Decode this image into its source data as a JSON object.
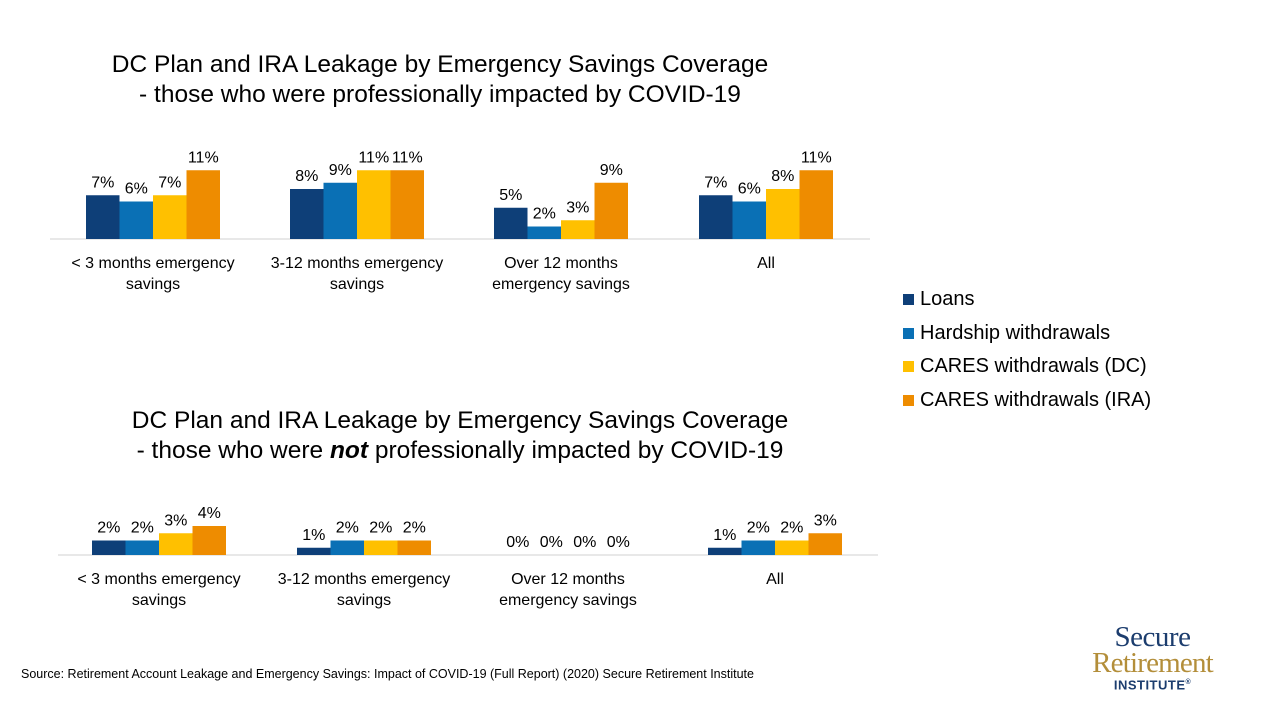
{
  "colors": {
    "loans": "#0e3f78",
    "hardship": "#0a70b5",
    "cares_dc": "#ffc000",
    "cares_ira": "#ee8c00",
    "axis": "#d0d0d0"
  },
  "legend": [
    {
      "name": "Loans",
      "color": "#0e3f78"
    },
    {
      "name": "Hardship withdrawals",
      "color": "#0a70b5"
    },
    {
      "name": "CARES withdrawals (DC)",
      "color": "#ffc000"
    },
    {
      "name": "CARES withdrawals (IRA)",
      "color": "#ee8c00"
    }
  ],
  "titles": {
    "top_line1": "DC Plan and IRA Leakage by Emergency Savings Coverage",
    "top_line2": "- those who were professionally impacted by COVID-19",
    "bottom_line1": "DC Plan and IRA Leakage by Emergency Savings Coverage",
    "bottom_line2_pre": "- those who were ",
    "bottom_line2_em": "not",
    "bottom_line2_post": " professionally impacted by COVID-19"
  },
  "chart_data": [
    {
      "type": "bar",
      "title": "DC Plan and IRA Leakage by Emergency Savings Coverage - those who were professionally impacted by COVID-19",
      "categories": [
        "< 3 months emergency savings",
        "3-12 months emergency savings",
        "Over 12 months emergency savings",
        "All"
      ],
      "category_lines": [
        [
          "< 3 months emergency",
          "savings"
        ],
        [
          "3-12 months emergency",
          "savings"
        ],
        [
          "Over 12 months",
          "emergency savings"
        ],
        [
          "All"
        ]
      ],
      "series": [
        {
          "name": "Loans",
          "values": [
            7,
            8,
            5,
            7
          ]
        },
        {
          "name": "Hardship withdrawals",
          "values": [
            6,
            9,
            2,
            6
          ]
        },
        {
          "name": "CARES withdrawals (DC)",
          "values": [
            7,
            11,
            3,
            8
          ]
        },
        {
          "name": "CARES withdrawals (IRA)",
          "values": [
            11,
            11,
            9,
            11
          ]
        }
      ],
      "value_suffix": "%",
      "legend_position": "right",
      "grid": false
    },
    {
      "type": "bar",
      "title": "DC Plan and IRA Leakage by Emergency Savings Coverage - those who were not professionally impacted by COVID-19",
      "categories": [
        "< 3 months emergency savings",
        "3-12 months emergency savings",
        "Over 12 months emergency savings",
        "All"
      ],
      "category_lines": [
        [
          "< 3 months emergency",
          "savings"
        ],
        [
          "3-12 months emergency",
          "savings"
        ],
        [
          "Over 12 months",
          "emergency savings"
        ],
        [
          "All"
        ]
      ],
      "series": [
        {
          "name": "Loans",
          "values": [
            2,
            1,
            0,
            1
          ]
        },
        {
          "name": "Hardship withdrawals",
          "values": [
            2,
            2,
            0,
            2
          ]
        },
        {
          "name": "CARES withdrawals (DC)",
          "values": [
            3,
            2,
            0,
            2
          ]
        },
        {
          "name": "CARES withdrawals (IRA)",
          "values": [
            4,
            2,
            0,
            3
          ]
        }
      ],
      "value_suffix": "%",
      "legend_position": "right",
      "grid": false
    }
  ],
  "source": "Source: Retirement Account Leakage and Emergency Savings: Impact of COVID-19 (Full Report) (2020) Secure Retirement Institute",
  "logo": {
    "line1": "Secure",
    "line2": "Retirement",
    "line3": "INSTITUTE",
    "mark": "®"
  }
}
